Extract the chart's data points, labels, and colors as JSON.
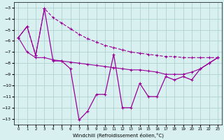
{
  "x": [
    0,
    1,
    2,
    3,
    4,
    5,
    6,
    7,
    8,
    9,
    10,
    11,
    12,
    13,
    14,
    15,
    16,
    17,
    18,
    19,
    20,
    21,
    22,
    23
  ],
  "y_zigzag": [
    -5.7,
    -4.7,
    -7.3,
    -3.1,
    -7.8,
    -7.8,
    -8.5,
    -13.1,
    -12.3,
    -10.8,
    -10.8,
    -7.2,
    -12.0,
    -12.0,
    -9.8,
    -11.0,
    -11.0,
    -9.2,
    -9.5,
    -9.2,
    -9.5,
    -8.5,
    -8.0,
    -7.5
  ],
  "y_upper": [
    -5.7,
    -4.7,
    -7.3,
    -3.1,
    -3.9,
    -4.4,
    -4.9,
    -5.4,
    -5.8,
    -6.1,
    -6.4,
    -6.6,
    -6.8,
    -7.0,
    -7.1,
    -7.2,
    -7.3,
    -7.4,
    -7.4,
    -7.5,
    -7.5,
    -7.5,
    -7.5,
    -7.5
  ],
  "y_lower": [
    -5.7,
    -7.0,
    -7.5,
    -7.5,
    -7.7,
    -7.8,
    -7.9,
    -8.0,
    -8.1,
    -8.2,
    -8.3,
    -8.4,
    -8.5,
    -8.6,
    -8.6,
    -8.7,
    -8.8,
    -9.0,
    -9.0,
    -9.0,
    -8.8,
    -8.5,
    -8.0,
    -7.5
  ],
  "background_color": "#d8f0f0",
  "line_color": "#990099",
  "grid_color": "#aacccc",
  "xlabel": "Windchill (Refroidissement éolien,°C)",
  "ylim": [
    -13.5,
    -2.5
  ],
  "xlim": [
    -0.5,
    23.5
  ],
  "yticks": [
    -3,
    -4,
    -5,
    -6,
    -7,
    -8,
    -9,
    -10,
    -11,
    -12,
    -13
  ],
  "xticks": [
    0,
    1,
    2,
    3,
    4,
    5,
    6,
    7,
    8,
    9,
    10,
    11,
    12,
    13,
    14,
    15,
    16,
    17,
    18,
    19,
    20,
    21,
    22,
    23
  ]
}
